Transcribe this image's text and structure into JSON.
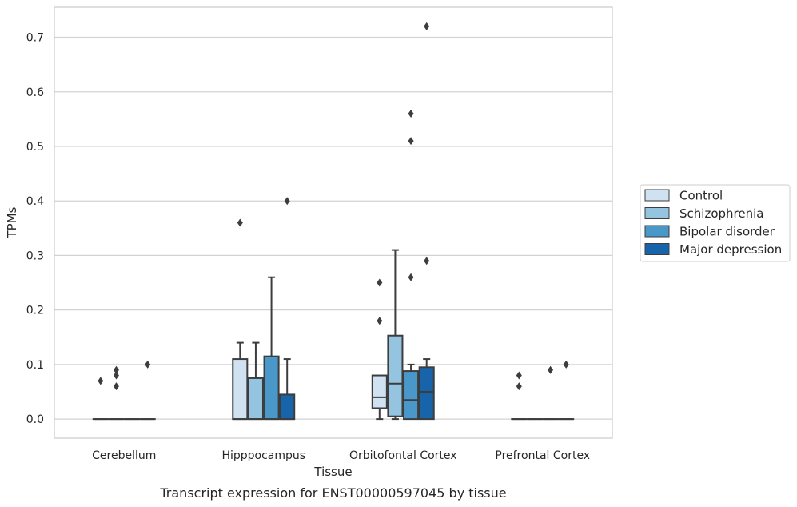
{
  "chart_data": {
    "type": "box",
    "xlabel": "Tissue",
    "ylabel": "TPMs",
    "caption": "Transcript expression for ENST00000597045 by tissue",
    "ylim": [
      -0.035,
      0.755
    ],
    "yticks": [
      0.0,
      0.1,
      0.2,
      0.3,
      0.4,
      0.5,
      0.6,
      0.7
    ],
    "ytick_labels": [
      "0.0",
      "0.1",
      "0.2",
      "0.3",
      "0.4",
      "0.5",
      "0.6",
      "0.7"
    ],
    "grid": "horizontal",
    "legend_position": "right",
    "categories": [
      "Cerebellum",
      "Hipppocampus",
      "Orbitofontal Cortex",
      "Prefrontal Cortex"
    ],
    "series": [
      {
        "name": "Control",
        "color": "#d0e1f2",
        "boxes": [
          {
            "q1": 0,
            "median": 0,
            "q3": 0,
            "whisker_low": 0,
            "whisker_high": 0,
            "outliers": [
              0.07
            ]
          },
          {
            "q1": 0,
            "median": 0,
            "q3": 0.11,
            "whisker_low": 0,
            "whisker_high": 0.14,
            "outliers": [
              0.36
            ]
          },
          {
            "q1": 0.02,
            "median": 0.04,
            "q3": 0.08,
            "whisker_low": 0,
            "whisker_high": 0.08,
            "outliers": [
              0.18,
              0.25
            ]
          },
          {
            "q1": 0,
            "median": 0,
            "q3": 0,
            "whisker_low": 0,
            "whisker_high": 0,
            "outliers": [
              0.06,
              0.08
            ]
          }
        ]
      },
      {
        "name": "Schizophrenia",
        "color": "#94c4df",
        "boxes": [
          {
            "q1": 0,
            "median": 0,
            "q3": 0,
            "whisker_low": 0,
            "whisker_high": 0,
            "outliers": [
              0.06,
              0.08,
              0.09
            ]
          },
          {
            "q1": 0,
            "median": 0,
            "q3": 0.075,
            "whisker_low": 0,
            "whisker_high": 0.14,
            "outliers": []
          },
          {
            "q1": 0.005,
            "median": 0.065,
            "q3": 0.153,
            "whisker_low": 0,
            "whisker_high": 0.31,
            "outliers": []
          },
          {
            "q1": 0,
            "median": 0,
            "q3": 0,
            "whisker_low": 0,
            "whisker_high": 0,
            "outliers": []
          }
        ]
      },
      {
        "name": "Bipolar disorder",
        "color": "#4a98c9",
        "boxes": [
          {
            "q1": 0,
            "median": 0,
            "q3": 0,
            "whisker_low": 0,
            "whisker_high": 0,
            "outliers": []
          },
          {
            "q1": 0,
            "median": 0,
            "q3": 0.115,
            "whisker_low": 0,
            "whisker_high": 0.26,
            "outliers": []
          },
          {
            "q1": 0,
            "median": 0.035,
            "q3": 0.088,
            "whisker_low": 0,
            "whisker_high": 0.1,
            "outliers": [
              0.26,
              0.51,
              0.56
            ]
          },
          {
            "q1": 0,
            "median": 0,
            "q3": 0,
            "whisker_low": 0,
            "whisker_high": 0,
            "outliers": [
              0.09
            ]
          }
        ]
      },
      {
        "name": "Major depression",
        "color": "#1764ab",
        "boxes": [
          {
            "q1": 0,
            "median": 0,
            "q3": 0,
            "whisker_low": 0,
            "whisker_high": 0,
            "outliers": [
              0.1
            ]
          },
          {
            "q1": 0,
            "median": 0,
            "q3": 0.045,
            "whisker_low": 0,
            "whisker_high": 0.11,
            "outliers": [
              0.4
            ]
          },
          {
            "q1": 0,
            "median": 0.05,
            "q3": 0.095,
            "whisker_low": 0,
            "whisker_high": 0.11,
            "outliers": [
              0.29,
              0.72
            ]
          },
          {
            "q1": 0,
            "median": 0,
            "q3": 0,
            "whisker_low": 0,
            "whisker_high": 0,
            "outliers": [
              0.1
            ]
          }
        ]
      }
    ]
  }
}
